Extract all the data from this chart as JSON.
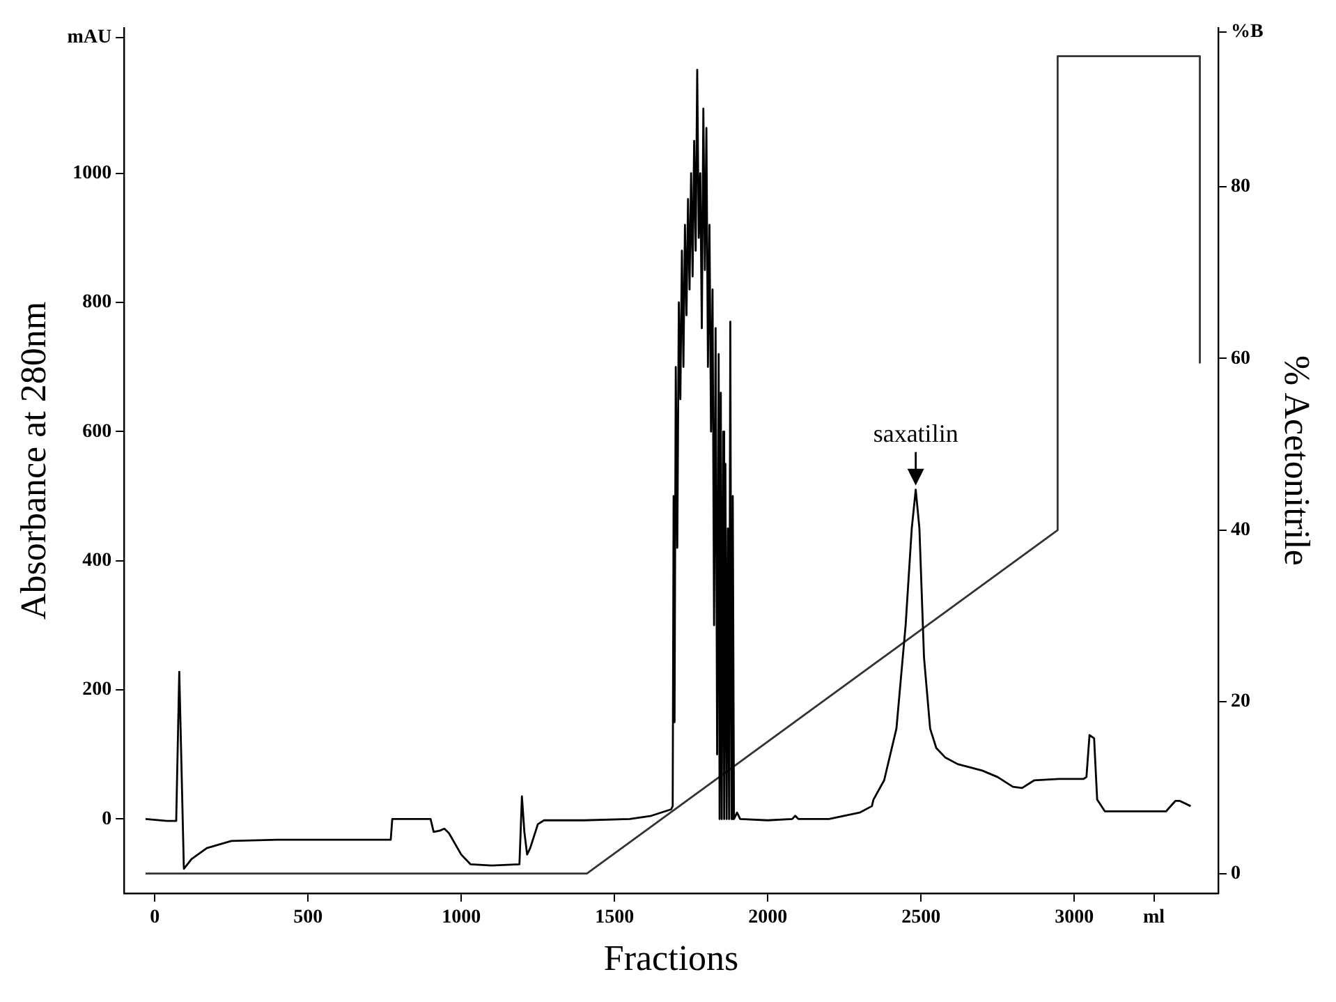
{
  "chart_data": {
    "type": "line",
    "xlabel": "Fractions",
    "ylabel": "Absorbance at 280nm",
    "y2label": "% Acetonitrile",
    "xlim": [
      -100,
      3470
    ],
    "ylim": [
      -115,
      1225
    ],
    "y2lim": [
      -2.3,
      98.5
    ],
    "xticks": [
      0,
      500,
      1000,
      1500,
      2000,
      2500,
      3000,
      {
        "value": 3260,
        "label": "ml"
      }
    ],
    "yticks": [
      0,
      200,
      400,
      600,
      800,
      1000,
      {
        "value": 1210,
        "label": "mAU"
      }
    ],
    "y2ticks": [
      0,
      20,
      40,
      60,
      80,
      {
        "value": 98,
        "label": "%B"
      }
    ],
    "grid": false,
    "legend": false,
    "marker": "none",
    "line_style": "solid",
    "annotations": [
      {
        "text": "saxatilin",
        "x": 2483,
        "y": 510
      }
    ],
    "series": [
      {
        "color": "#000000",
        "x": [
          -30,
          40,
          70,
          80,
          95,
          120,
          170,
          250,
          400,
          770,
          775,
          900,
          910,
          930,
          945,
          960,
          1000,
          1030,
          1100,
          1190,
          1198,
          1206,
          1215,
          1225,
          1250,
          1270,
          1400,
          1550,
          1620,
          1685,
          1690,
          1693,
          1696,
          1700,
          1705,
          1710,
          1715,
          1720,
          1725,
          1730,
          1735,
          1740,
          1745,
          1750,
          1755,
          1760,
          1765,
          1770,
          1775,
          1780,
          1785,
          1790,
          1795,
          1800,
          1805,
          1810,
          1815,
          1820,
          1825,
          1830,
          1835,
          1840,
          1843,
          1847,
          1850,
          1855,
          1858,
          1862,
          1866,
          1870,
          1874,
          1878,
          1882,
          1886,
          1890,
          1900,
          1910,
          2000,
          2080,
          2090,
          2100,
          2200,
          2300,
          2340,
          2345,
          2380,
          2420,
          2450,
          2470,
          2483,
          2495,
          2510,
          2530,
          2550,
          2580,
          2620,
          2700,
          2750,
          2800,
          2830,
          2870,
          2950,
          3030,
          3040,
          3050,
          3065,
          3075,
          3100,
          3200,
          3300,
          3330,
          3345,
          3380
        ],
        "values": [
          0,
          -3,
          -3,
          228,
          -77,
          -62,
          -45,
          -34,
          -32,
          -32,
          0,
          0,
          -20,
          -18,
          -15,
          -22,
          -55,
          -70,
          -72,
          -70,
          35,
          -20,
          -55,
          -45,
          -8,
          -2,
          -2,
          0,
          5,
          15,
          20,
          500,
          150,
          700,
          420,
          800,
          650,
          880,
          700,
          920,
          780,
          960,
          820,
          1000,
          840,
          1050,
          880,
          1160,
          900,
          1000,
          760,
          1100,
          850,
          1070,
          700,
          920,
          600,
          820,
          300,
          760,
          100,
          720,
          0,
          660,
          0,
          600,
          0,
          550,
          0,
          450,
          0,
          770,
          0,
          500,
          0,
          10,
          0,
          -2,
          0,
          5,
          0,
          0,
          10,
          20,
          30,
          60,
          140,
          300,
          450,
          510,
          450,
          250,
          140,
          110,
          95,
          85,
          75,
          65,
          50,
          48,
          60,
          62,
          62,
          65,
          130,
          125,
          30,
          12,
          12,
          12,
          28,
          28,
          20
        ]
      },
      {
        "axis": "y2",
        "color": "#333333",
        "x": [
          -30,
          1410,
          2946,
          2946,
          3410,
          3410
        ],
        "values": [
          0,
          0,
          40,
          95.2,
          95.2,
          59.5
        ]
      }
    ]
  }
}
